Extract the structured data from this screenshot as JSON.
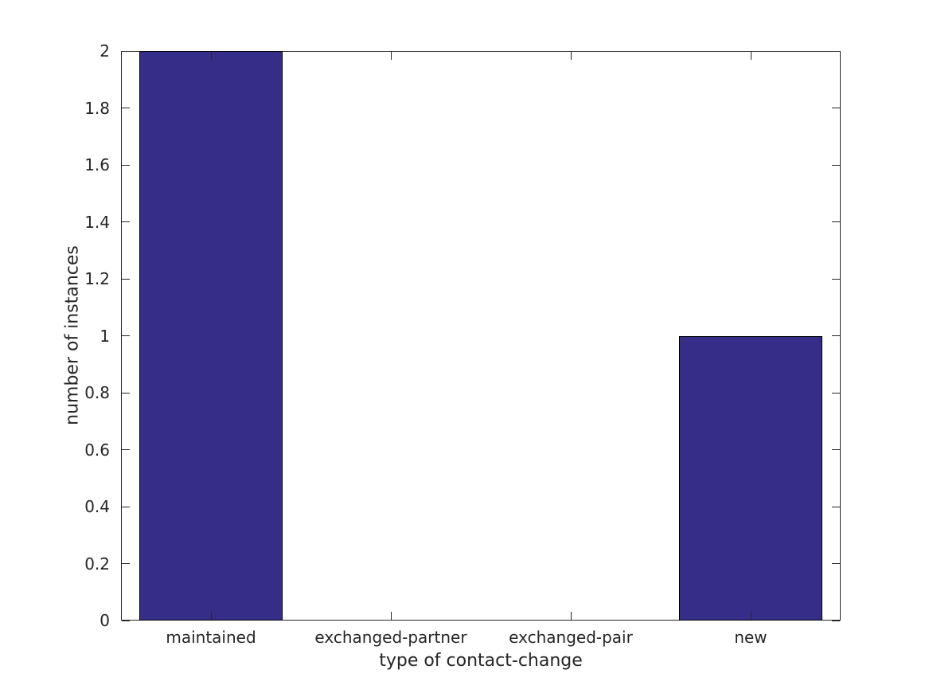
{
  "chart_data": {
    "type": "bar",
    "categories": [
      "maintained",
      "exchanged-partner",
      "exchanged-pair",
      "new"
    ],
    "values": [
      2,
      0,
      0,
      1
    ],
    "title": "",
    "xlabel": "type of contact-change",
    "ylabel": "number of instances",
    "ylim": [
      0,
      2
    ],
    "ytick_step": 0.2,
    "ytick_labels": [
      "0",
      "0.2",
      "0.4",
      "0.6",
      "0.8",
      "1",
      "1.2",
      "1.4",
      "1.6",
      "1.8",
      "2"
    ],
    "bar_width_fraction": 0.8,
    "bar_color": "#352D88",
    "bar_edge_color": "#000000",
    "axis_color": "#262626",
    "text_color": "#262626",
    "background_color": "#ffffff",
    "grid": false,
    "legend": false,
    "tick_direction": "in",
    "box": true
  }
}
